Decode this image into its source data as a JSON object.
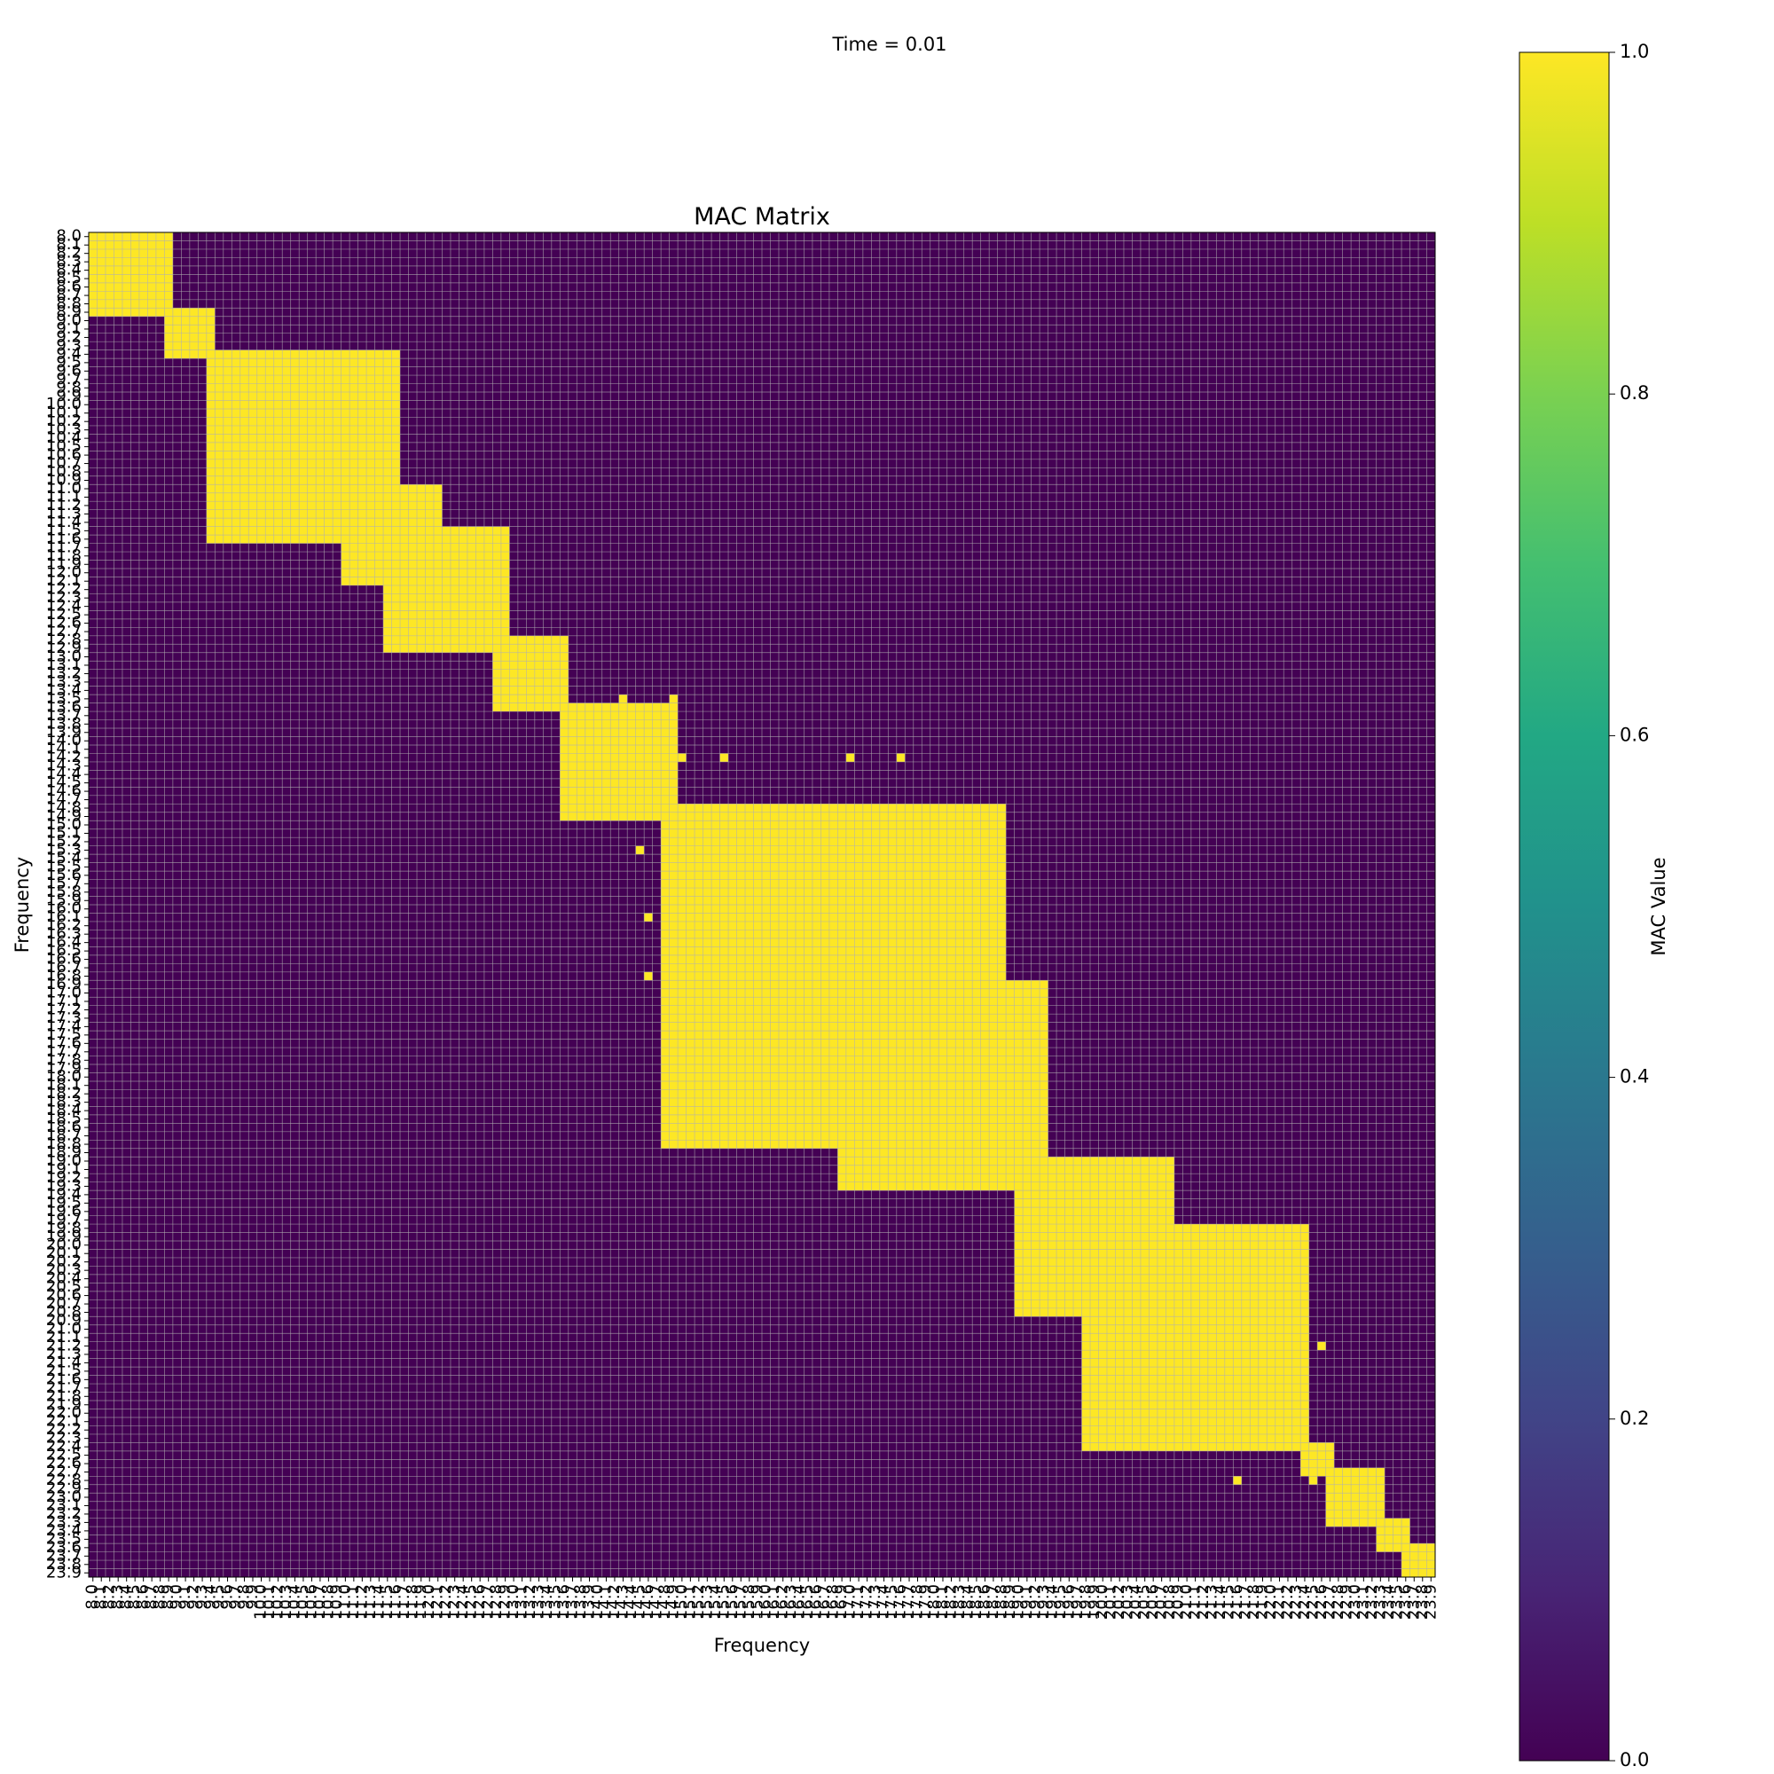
{
  "figure": {
    "suptitle": "Time = 0.01"
  },
  "chart_data": {
    "type": "heatmap",
    "title": "MAC Matrix",
    "xlabel": "Frequency",
    "ylabel": "Frequency",
    "frequency_start": 8.0,
    "frequency_end": 23.9,
    "frequency_step": 0.1,
    "x_tick_labels": [
      "8.0",
      "8.1",
      "8.2",
      "8.3",
      "8.4",
      "8.5",
      "8.6",
      "8.7",
      "8.8",
      "8.9",
      "9.0",
      "9.1",
      "9.2",
      "9.3",
      "9.4",
      "9.5",
      "9.6",
      "9.7",
      "9.8",
      "9.9",
      "10.0",
      "10.1",
      "10.2",
      "10.3",
      "10.4",
      "10.5",
      "10.6",
      "10.7",
      "10.8",
      "10.9",
      "11.0",
      "11.1",
      "11.2",
      "11.3",
      "11.4",
      "11.5",
      "11.6",
      "11.7",
      "11.8",
      "11.9",
      "12.0",
      "12.1",
      "12.2",
      "12.3",
      "12.4",
      "12.5",
      "12.6",
      "12.7",
      "12.8",
      "12.9",
      "13.0",
      "13.1",
      "13.2",
      "13.3",
      "13.4",
      "13.5",
      "13.6",
      "13.7",
      "13.8",
      "13.9",
      "14.0",
      "14.1",
      "14.2",
      "14.3",
      "14.4",
      "14.5",
      "14.6",
      "14.7",
      "14.8",
      "14.9",
      "15.0",
      "15.1",
      "15.2",
      "15.3",
      "15.4",
      "15.5",
      "15.6",
      "15.7",
      "15.8",
      "15.9",
      "16.0",
      "16.1",
      "16.2",
      "16.3",
      "16.4",
      "16.5",
      "16.6",
      "16.7",
      "16.8",
      "16.9",
      "17.0",
      "17.1",
      "17.2",
      "17.3",
      "17.4",
      "17.5",
      "17.6",
      "17.7",
      "17.8",
      "17.9",
      "18.0",
      "18.1",
      "18.2",
      "18.3",
      "18.4",
      "18.5",
      "18.6",
      "18.7",
      "18.8",
      "18.9",
      "19.0",
      "19.1",
      "19.2",
      "19.3",
      "19.4",
      "19.5",
      "19.6",
      "19.7",
      "19.8",
      "19.9",
      "20.0",
      "20.1",
      "20.2",
      "20.3",
      "20.4",
      "20.5",
      "20.6",
      "20.7",
      "20.8",
      "20.9",
      "21.0",
      "21.1",
      "21.2",
      "21.3",
      "21.4",
      "21.5",
      "21.6",
      "21.7",
      "21.8",
      "21.9",
      "22.0",
      "22.1",
      "22.2",
      "22.3",
      "22.4",
      "22.5",
      "22.6",
      "22.7",
      "22.8",
      "22.9",
      "23.0",
      "23.1",
      "23.2",
      "23.3",
      "23.4",
      "23.5",
      "23.6",
      "23.7",
      "23.8",
      "23.9"
    ],
    "y_tick_labels": [
      "8.0",
      "8.1",
      "8.2",
      "8.3",
      "8.4",
      "8.5",
      "8.6",
      "8.7",
      "8.8",
      "8.9",
      "9.0",
      "9.1",
      "9.2",
      "9.3",
      "9.4",
      "9.5",
      "9.6",
      "9.7",
      "9.8",
      "9.9",
      "10.0",
      "10.1",
      "10.2",
      "10.3",
      "10.4",
      "10.5",
      "10.6",
      "10.7",
      "10.8",
      "10.9",
      "11.0",
      "11.1",
      "11.2",
      "11.3",
      "11.4",
      "11.5",
      "11.6",
      "11.7",
      "11.8",
      "11.9",
      "12.0",
      "12.1",
      "12.2",
      "12.3",
      "12.4",
      "12.5",
      "12.6",
      "12.7",
      "12.8",
      "12.9",
      "13.0",
      "13.1",
      "13.2",
      "13.3",
      "13.4",
      "13.5",
      "13.6",
      "13.7",
      "13.8",
      "13.9",
      "14.0",
      "14.1",
      "14.2",
      "14.3",
      "14.4",
      "14.5",
      "14.6",
      "14.7",
      "14.8",
      "14.9",
      "15.0",
      "15.1",
      "15.2",
      "15.3",
      "15.4",
      "15.5",
      "15.6",
      "15.7",
      "15.8",
      "15.9",
      "16.0",
      "16.1",
      "16.2",
      "16.3",
      "16.4",
      "16.5",
      "16.6",
      "16.7",
      "16.8",
      "16.9",
      "17.0",
      "17.1",
      "17.2",
      "17.3",
      "17.4",
      "17.5",
      "17.6",
      "17.7",
      "17.8",
      "17.9",
      "18.0",
      "18.1",
      "18.2",
      "18.3",
      "18.4",
      "18.5",
      "18.6",
      "18.7",
      "18.8",
      "18.9",
      "19.0",
      "19.1",
      "19.2",
      "19.3",
      "19.4",
      "19.5",
      "19.6",
      "19.7",
      "19.8",
      "19.9",
      "20.0",
      "20.1",
      "20.2",
      "20.3",
      "20.4",
      "20.5",
      "20.6",
      "20.7",
      "20.8",
      "20.9",
      "21.0",
      "21.1",
      "21.2",
      "21.3",
      "21.4",
      "21.5",
      "21.6",
      "21.7",
      "21.8",
      "21.9",
      "22.0",
      "22.1",
      "22.2",
      "22.3",
      "22.4",
      "22.5",
      "22.6",
      "22.7",
      "22.8",
      "22.9",
      "23.0",
      "23.1",
      "23.2",
      "23.3",
      "23.4",
      "23.5",
      "23.6",
      "23.7",
      "23.8",
      "23.9"
    ],
    "value_range": [
      0,
      1
    ],
    "colormap": "viridis",
    "low_color": "#440154",
    "high_color": "#fde725",
    "grid": true,
    "grid_color": "#b0b0b0",
    "high_regions": [
      {
        "x": [
          8.0,
          8.9
        ],
        "y": [
          8.0,
          8.9
        ]
      },
      {
        "x": [
          8.9,
          9.4
        ],
        "y": [
          8.9,
          9.4
        ]
      },
      {
        "x": [
          9.4,
          11.6
        ],
        "y": [
          9.4,
          11.6
        ]
      },
      {
        "x": [
          11.5,
          12.9
        ],
        "y": [
          11.5,
          12.9
        ]
      },
      {
        "x": [
          11.0,
          12.1
        ],
        "y": [
          11.0,
          12.1
        ]
      },
      {
        "x": [
          12.8,
          13.6
        ],
        "y": [
          12.8,
          13.6
        ]
      },
      {
        "x": [
          13.6,
          14.9
        ],
        "y": [
          13.6,
          14.9
        ]
      },
      {
        "x": [
          14.8,
          17.0
        ],
        "y": [
          14.8,
          17.0
        ]
      },
      {
        "x": [
          14.8,
          18.8
        ],
        "y": [
          14.8,
          18.8
        ]
      },
      {
        "x": [
          15.0,
          17.2
        ],
        "y": [
          15.0,
          17.2
        ]
      },
      {
        "x": [
          16.9,
          19.3
        ],
        "y": [
          16.9,
          19.3
        ]
      },
      {
        "x": [
          19.0,
          20.8
        ],
        "y": [
          19.0,
          20.8
        ]
      },
      {
        "x": [
          20.6,
          22.4
        ],
        "y": [
          20.6,
          22.4
        ]
      },
      {
        "x": [
          19.8,
          22.4
        ],
        "y": [
          19.8,
          22.4
        ]
      },
      {
        "x": [
          22.4,
          22.7
        ],
        "y": [
          22.4,
          22.7
        ]
      },
      {
        "x": [
          22.7,
          23.3
        ],
        "y": [
          22.7,
          23.3
        ]
      },
      {
        "x": [
          23.3,
          23.6
        ],
        "y": [
          23.3,
          23.6
        ]
      },
      {
        "x": [
          23.6,
          23.9
        ],
        "y": [
          23.6,
          23.9
        ]
      }
    ],
    "high_spots": [
      {
        "x": 14.3,
        "y": 13.5
      },
      {
        "x": 14.9,
        "y": 13.5
      },
      {
        "x": 14.2,
        "y": 14.2
      },
      {
        "x": 15.0,
        "y": 14.2
      },
      {
        "x": 15.5,
        "y": 14.2
      },
      {
        "x": 17.0,
        "y": 14.2
      },
      {
        "x": 17.6,
        "y": 14.2
      },
      {
        "x": 13.6,
        "y": 14.6
      },
      {
        "x": 14.5,
        "y": 15.3
      },
      {
        "x": 14.6,
        "y": 16.1
      },
      {
        "x": 14.6,
        "y": 16.8
      },
      {
        "x": 22.6,
        "y": 21.2
      },
      {
        "x": 21.6,
        "y": 22.8
      },
      {
        "x": 22.5,
        "y": 22.8
      }
    ],
    "colorbar": {
      "label": "MAC Value",
      "ticks": [
        0.0,
        0.2,
        0.4,
        0.6,
        0.8,
        1.0
      ],
      "tick_labels": [
        "0.0",
        "0.2",
        "0.4",
        "0.6",
        "0.8",
        "1.0"
      ],
      "range": [
        0,
        1
      ]
    }
  }
}
